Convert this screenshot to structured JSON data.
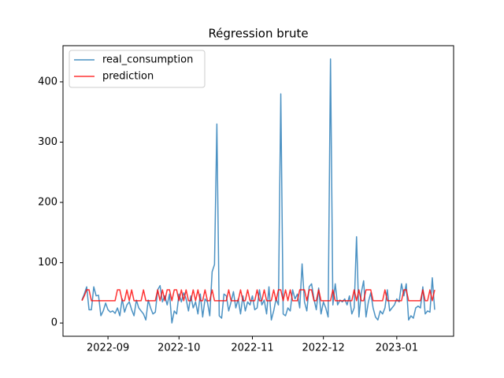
{
  "chart_data": {
    "type": "line",
    "title": "Régression brute",
    "x": [
      "2022-08-21",
      "2022-08-22",
      "2022-08-23",
      "2022-08-24",
      "2022-08-25",
      "2022-08-26",
      "2022-08-27",
      "2022-08-28",
      "2022-08-29",
      "2022-08-30",
      "2022-08-31",
      "2022-09-01",
      "2022-09-02",
      "2022-09-03",
      "2022-09-04",
      "2022-09-05",
      "2022-09-06",
      "2022-09-07",
      "2022-09-08",
      "2022-09-09",
      "2022-09-10",
      "2022-09-11",
      "2022-09-12",
      "2022-09-13",
      "2022-09-14",
      "2022-09-15",
      "2022-09-16",
      "2022-09-17",
      "2022-09-18",
      "2022-09-19",
      "2022-09-20",
      "2022-09-21",
      "2022-09-22",
      "2022-09-23",
      "2022-09-24",
      "2022-09-25",
      "2022-09-26",
      "2022-09-27",
      "2022-09-28",
      "2022-09-29",
      "2022-09-30",
      "2022-10-01",
      "2022-10-02",
      "2022-10-03",
      "2022-10-04",
      "2022-10-05",
      "2022-10-06",
      "2022-10-07",
      "2022-10-08",
      "2022-10-09",
      "2022-10-10",
      "2022-10-11",
      "2022-10-12",
      "2022-10-13",
      "2022-10-14",
      "2022-10-15",
      "2022-10-16",
      "2022-10-17",
      "2022-10-18",
      "2022-10-19",
      "2022-10-20",
      "2022-10-21",
      "2022-10-22",
      "2022-10-23",
      "2022-10-24",
      "2022-10-25",
      "2022-10-26",
      "2022-10-27",
      "2022-10-28",
      "2022-10-29",
      "2022-10-30",
      "2022-10-31",
      "2022-11-01",
      "2022-11-02",
      "2022-11-03",
      "2022-11-04",
      "2022-11-05",
      "2022-11-06",
      "2022-11-07",
      "2022-11-08",
      "2022-11-09",
      "2022-11-10",
      "2022-11-11",
      "2022-11-12",
      "2022-11-13",
      "2022-11-14",
      "2022-11-15",
      "2022-11-16",
      "2022-11-17",
      "2022-11-18",
      "2022-11-19",
      "2022-11-20",
      "2022-11-21",
      "2022-11-22",
      "2022-11-23",
      "2022-11-24",
      "2022-11-25",
      "2022-11-26",
      "2022-11-27",
      "2022-11-28",
      "2022-11-29",
      "2022-11-30",
      "2022-12-01",
      "2022-12-02",
      "2022-12-03",
      "2022-12-04",
      "2022-12-05",
      "2022-12-06",
      "2022-12-07",
      "2022-12-08",
      "2022-12-09",
      "2022-12-10",
      "2022-12-11",
      "2022-12-12",
      "2022-12-13",
      "2022-12-14",
      "2022-12-15",
      "2022-12-16",
      "2022-12-17",
      "2022-12-18",
      "2022-12-19",
      "2022-12-20",
      "2022-12-21",
      "2022-12-22",
      "2022-12-23",
      "2022-12-24",
      "2022-12-25",
      "2022-12-26",
      "2022-12-27",
      "2022-12-28",
      "2022-12-29",
      "2022-12-30",
      "2022-12-31",
      "2023-01-01",
      "2023-01-02",
      "2023-01-03",
      "2023-01-04",
      "2023-01-05",
      "2023-01-06",
      "2023-01-07",
      "2023-01-08",
      "2023-01-09",
      "2023-01-10",
      "2023-01-11",
      "2023-01-12",
      "2023-01-13",
      "2023-01-14",
      "2023-01-15",
      "2023-01-16",
      "2023-01-17"
    ],
    "series": [
      {
        "name": "real_consumption",
        "color": "#1f77b4",
        "values": [
          38,
          48,
          60,
          22,
          22,
          60,
          45,
          46,
          12,
          20,
          33,
          22,
          18,
          20,
          16,
          25,
          12,
          40,
          18,
          30,
          35,
          22,
          12,
          38,
          25,
          20,
          15,
          5,
          38,
          25,
          15,
          18,
          55,
          62,
          35,
          45,
          30,
          48,
          0,
          20,
          15,
          48,
          35,
          50,
          40,
          20,
          45,
          25,
          35,
          15,
          48,
          10,
          40,
          35,
          12,
          85,
          97,
          330,
          12,
          8,
          48,
          45,
          20,
          35,
          52,
          25,
          40,
          15,
          45,
          20,
          35,
          30,
          45,
          22,
          25,
          55,
          30,
          38,
          15,
          60,
          5,
          20,
          40,
          30,
          380,
          15,
          12,
          25,
          20,
          55,
          40,
          48,
          25,
          98,
          35,
          20,
          60,
          65,
          40,
          22,
          58,
          15,
          35,
          25,
          10,
          438,
          30,
          65,
          30,
          38,
          35,
          40,
          30,
          45,
          15,
          25,
          143,
          10,
          50,
          70,
          10,
          35,
          50,
          25,
          10,
          5,
          20,
          15,
          25,
          55,
          20,
          25,
          30,
          40,
          35,
          65,
          45,
          65,
          5,
          12,
          8,
          25,
          28,
          25,
          60,
          15,
          20,
          18,
          75,
          22
        ]
      },
      {
        "name": "prediction",
        "color": "#ff0000",
        "values": [
          37,
          45,
          55,
          55,
          37,
          37,
          37,
          37,
          37,
          37,
          37,
          37,
          37,
          37,
          37,
          55,
          55,
          37,
          37,
          55,
          37,
          55,
          37,
          37,
          37,
          37,
          55,
          37,
          37,
          37,
          37,
          37,
          55,
          37,
          55,
          37,
          55,
          55,
          37,
          55,
          55,
          37,
          55,
          37,
          55,
          37,
          37,
          55,
          37,
          55,
          37,
          37,
          55,
          37,
          37,
          55,
          37,
          37,
          37,
          37,
          37,
          37,
          55,
          37,
          37,
          37,
          37,
          55,
          37,
          37,
          55,
          37,
          37,
          37,
          55,
          37,
          37,
          55,
          37,
          37,
          37,
          55,
          37,
          55,
          55,
          37,
          55,
          37,
          55,
          37,
          37,
          37,
          55,
          55,
          55,
          37,
          55,
          55,
          37,
          37,
          55,
          37,
          37,
          37,
          37,
          37,
          55,
          37,
          37,
          37,
          37,
          37,
          37,
          37,
          37,
          55,
          37,
          55,
          37,
          37,
          55,
          55,
          55,
          37,
          37,
          37,
          37,
          37,
          55,
          37,
          37,
          37,
          37,
          37,
          37,
          37,
          55,
          55,
          37,
          37,
          37,
          37,
          37,
          37,
          55,
          37,
          37,
          55,
          37,
          55
        ]
      }
    ],
    "xlim": [
      "2022-08-13",
      "2023-01-25"
    ],
    "xticks": [
      {
        "value": "2022-09-01",
        "label": "2022-09"
      },
      {
        "value": "2022-10-01",
        "label": "2022-10"
      },
      {
        "value": "2022-11-01",
        "label": "2022-11"
      },
      {
        "value": "2022-12-01",
        "label": "2022-12"
      },
      {
        "value": "2023-01-01",
        "label": "2023-01"
      }
    ],
    "ylim": [
      -22,
      460
    ],
    "yticks": [
      0,
      100,
      200,
      300,
      400
    ],
    "legend": "upper left",
    "grid": false
  }
}
